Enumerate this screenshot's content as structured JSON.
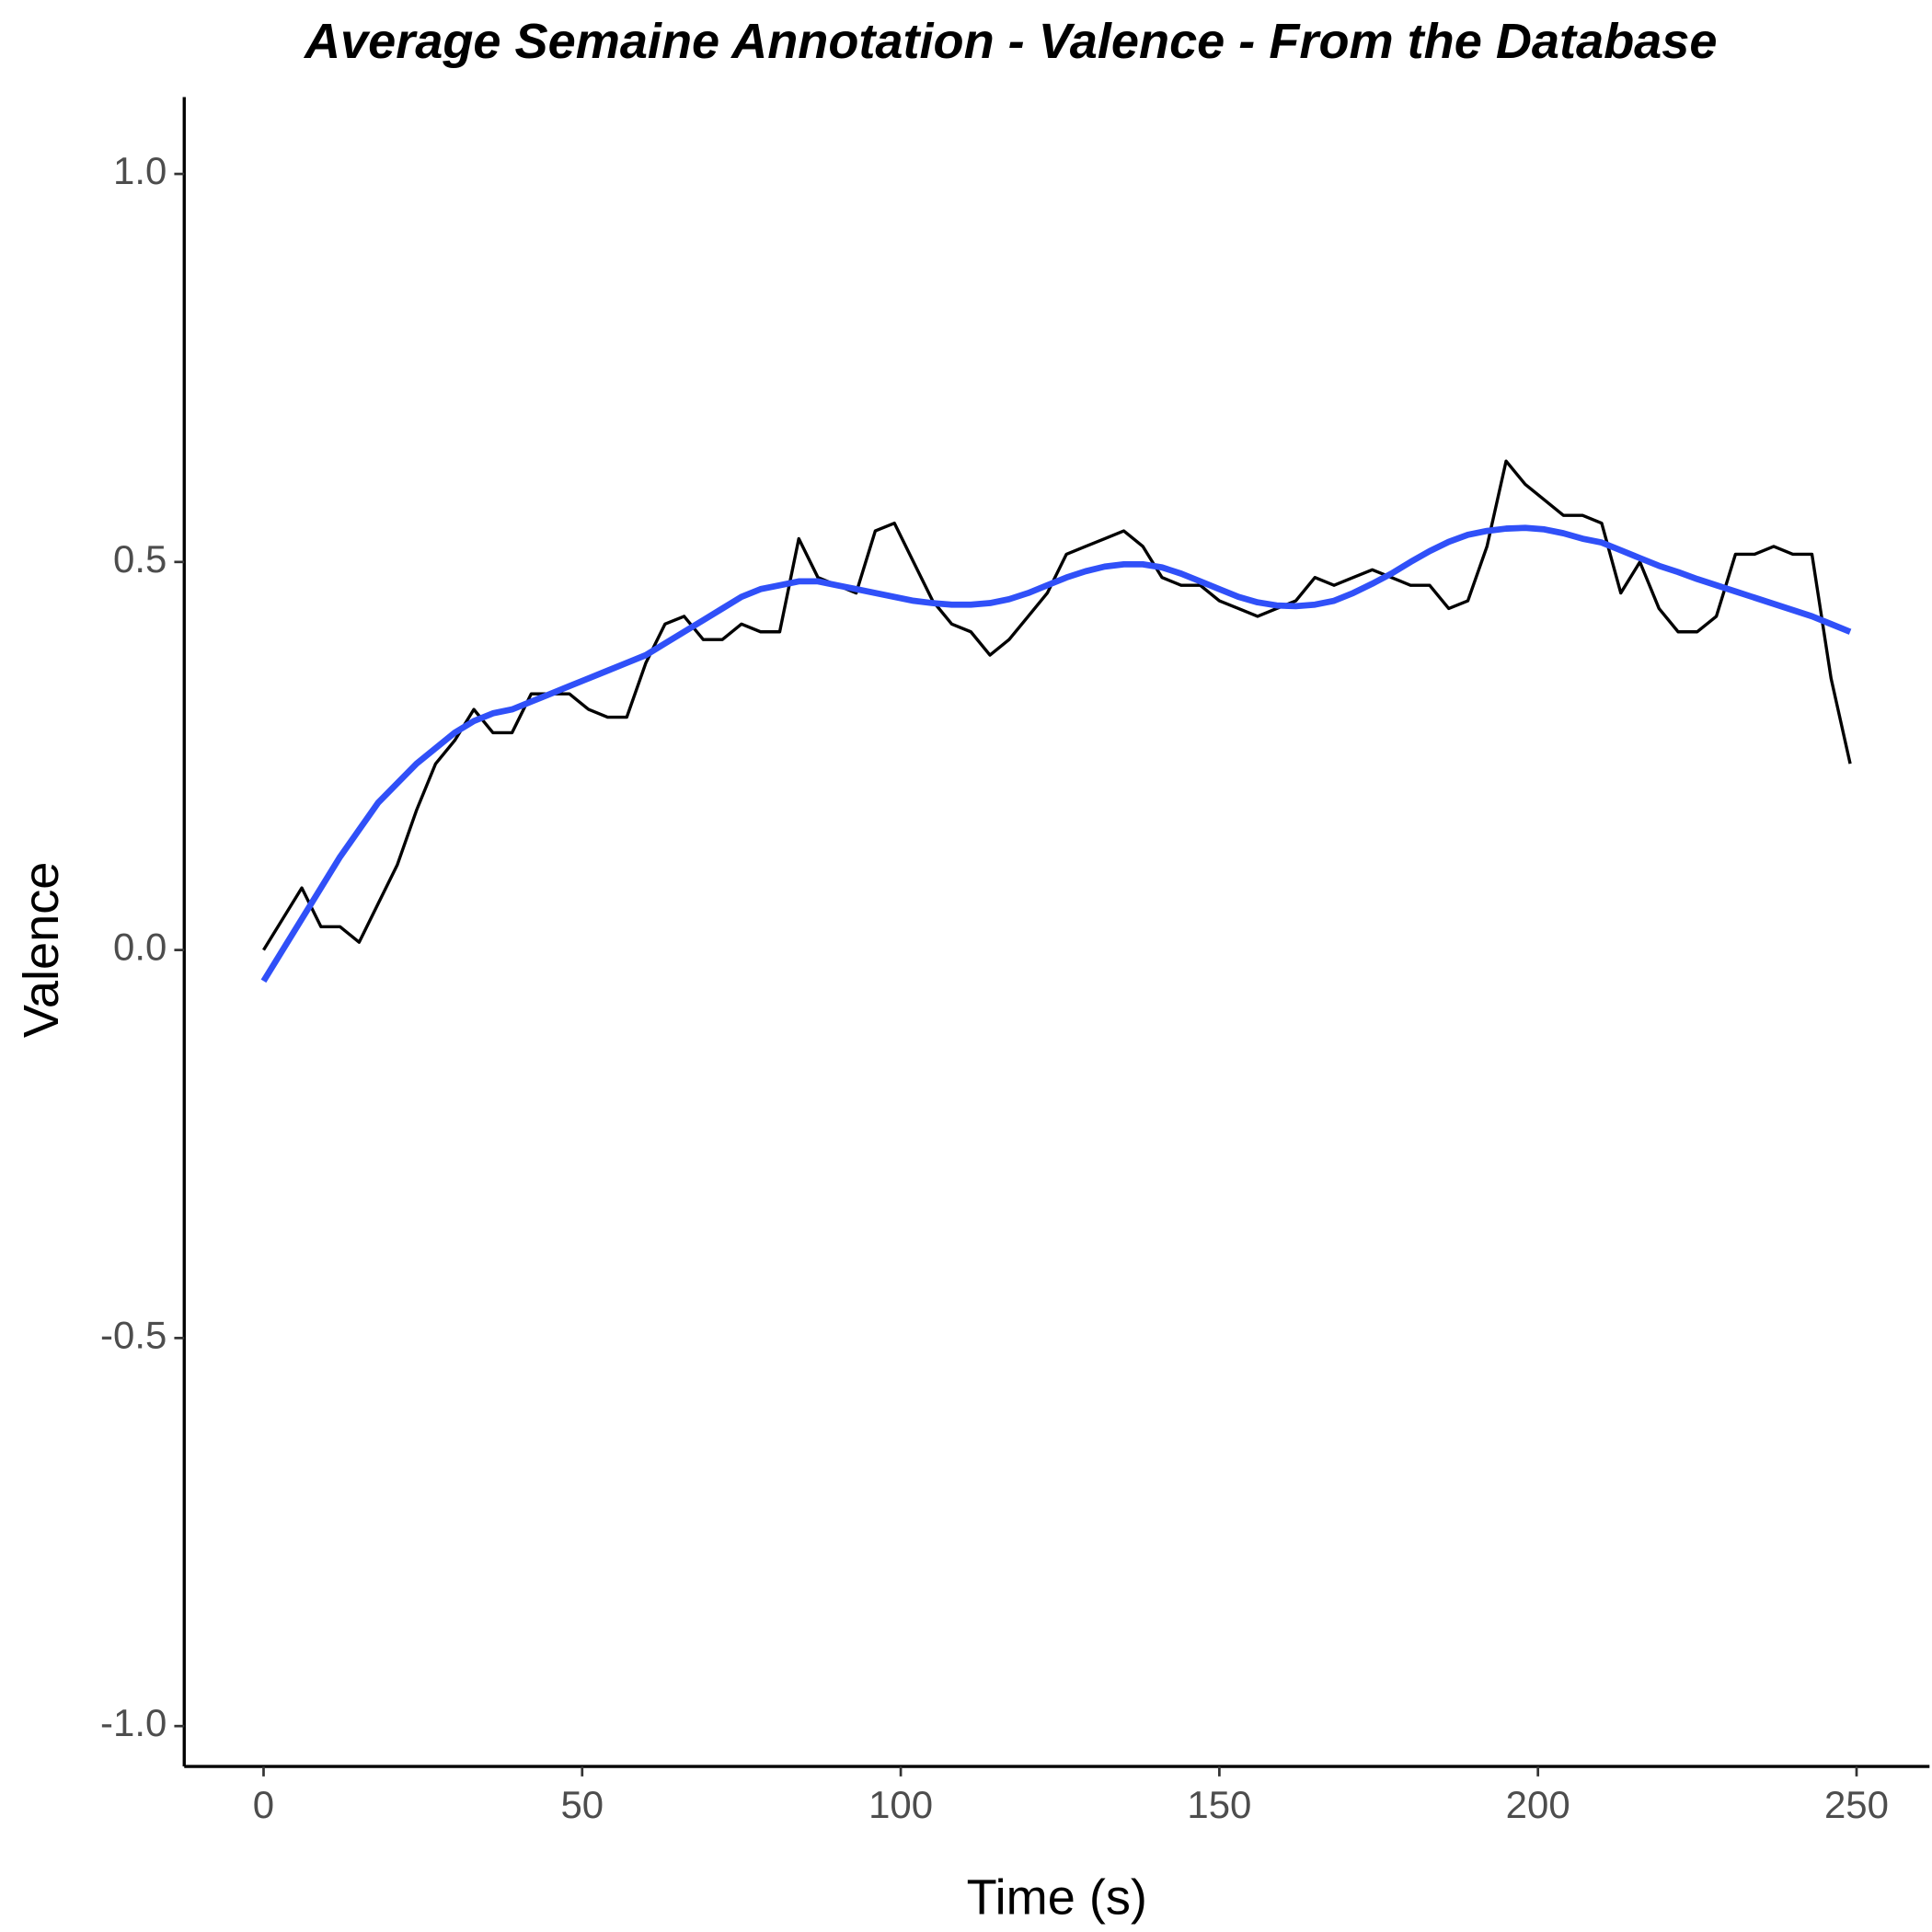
{
  "chart_data": {
    "type": "line",
    "title": "Average Semaine Annotation - Valence - From the Database",
    "x_label": "Time (s)",
    "y_label": "Valence",
    "x": [
      0,
      3,
      6,
      9,
      12,
      15,
      18,
      21,
      24,
      27,
      30,
      33,
      36,
      39,
      42,
      45,
      48,
      51,
      54,
      57,
      60,
      63,
      66,
      69,
      72,
      75,
      78,
      81,
      84,
      87,
      90,
      93,
      96,
      99,
      102,
      105,
      108,
      111,
      114,
      117,
      120,
      123,
      126,
      129,
      132,
      135,
      138,
      141,
      144,
      147,
      150,
      153,
      156,
      159,
      162,
      165,
      168,
      171,
      174,
      177,
      180,
      183,
      186,
      189,
      192,
      195,
      198,
      201,
      204,
      207,
      210,
      213,
      216,
      219,
      222,
      225,
      228,
      231,
      234,
      237,
      240,
      243,
      246,
      249
    ],
    "series": [
      {
        "color": "#000000",
        "values": [
          0.0,
          0.04,
          0.08,
          0.03,
          0.03,
          0.01,
          0.06,
          0.11,
          0.18,
          0.24,
          0.27,
          0.31,
          0.28,
          0.28,
          0.33,
          0.33,
          0.33,
          0.31,
          0.3,
          0.3,
          0.37,
          0.42,
          0.43,
          0.4,
          0.4,
          0.42,
          0.41,
          0.41,
          0.53,
          0.48,
          0.47,
          0.46,
          0.54,
          0.55,
          0.5,
          0.45,
          0.42,
          0.41,
          0.38,
          0.4,
          0.43,
          0.46,
          0.51,
          0.52,
          0.53,
          0.54,
          0.52,
          0.48,
          0.47,
          0.47,
          0.45,
          0.44,
          0.43,
          0.44,
          0.45,
          0.48,
          0.47,
          0.48,
          0.49,
          0.48,
          0.47,
          0.47,
          0.44,
          0.45,
          0.52,
          0.63,
          0.6,
          0.58,
          0.56,
          0.56,
          0.55,
          0.46,
          0.5,
          0.44,
          0.41,
          0.41,
          0.43,
          0.51,
          0.51,
          0.52,
          0.51,
          0.51,
          0.35,
          0.24
        ]
      },
      {
        "color": "#3050f8",
        "values": [
          -0.04,
          0.0,
          0.04,
          0.08,
          0.12,
          0.155,
          0.19,
          0.215,
          0.24,
          0.26,
          0.28,
          0.295,
          0.305,
          0.31,
          0.32,
          0.33,
          0.34,
          0.35,
          0.36,
          0.37,
          0.38,
          0.395,
          0.41,
          0.425,
          0.44,
          0.455,
          0.465,
          0.47,
          0.475,
          0.475,
          0.47,
          0.465,
          0.46,
          0.455,
          0.45,
          0.447,
          0.445,
          0.445,
          0.447,
          0.452,
          0.46,
          0.47,
          0.48,
          0.488,
          0.494,
          0.497,
          0.497,
          0.493,
          0.485,
          0.475,
          0.465,
          0.455,
          0.448,
          0.444,
          0.443,
          0.445,
          0.45,
          0.46,
          0.472,
          0.485,
          0.5,
          0.514,
          0.526,
          0.535,
          0.54,
          0.543,
          0.544,
          0.542,
          0.537,
          0.53,
          0.525,
          0.515,
          0.505,
          0.495,
          0.487,
          0.478,
          0.47,
          0.462,
          0.454,
          0.446,
          0.438,
          0.43,
          0.42,
          0.41
        ]
      }
    ],
    "xlim": [
      -12.45,
      261.45
    ],
    "ylim": [
      -1.052,
      1.099
    ],
    "xticks": [
      0,
      50,
      100,
      150,
      200,
      250
    ],
    "yticks": [
      {
        "value": -1,
        "label": "-1.0"
      },
      {
        "value": -0.5,
        "label": "-0.5"
      },
      {
        "value": 0,
        "label": "0.0"
      },
      {
        "value": 0.5,
        "label": "0.5"
      },
      {
        "value": 1,
        "label": "1.0"
      }
    ],
    "grid": false
  }
}
